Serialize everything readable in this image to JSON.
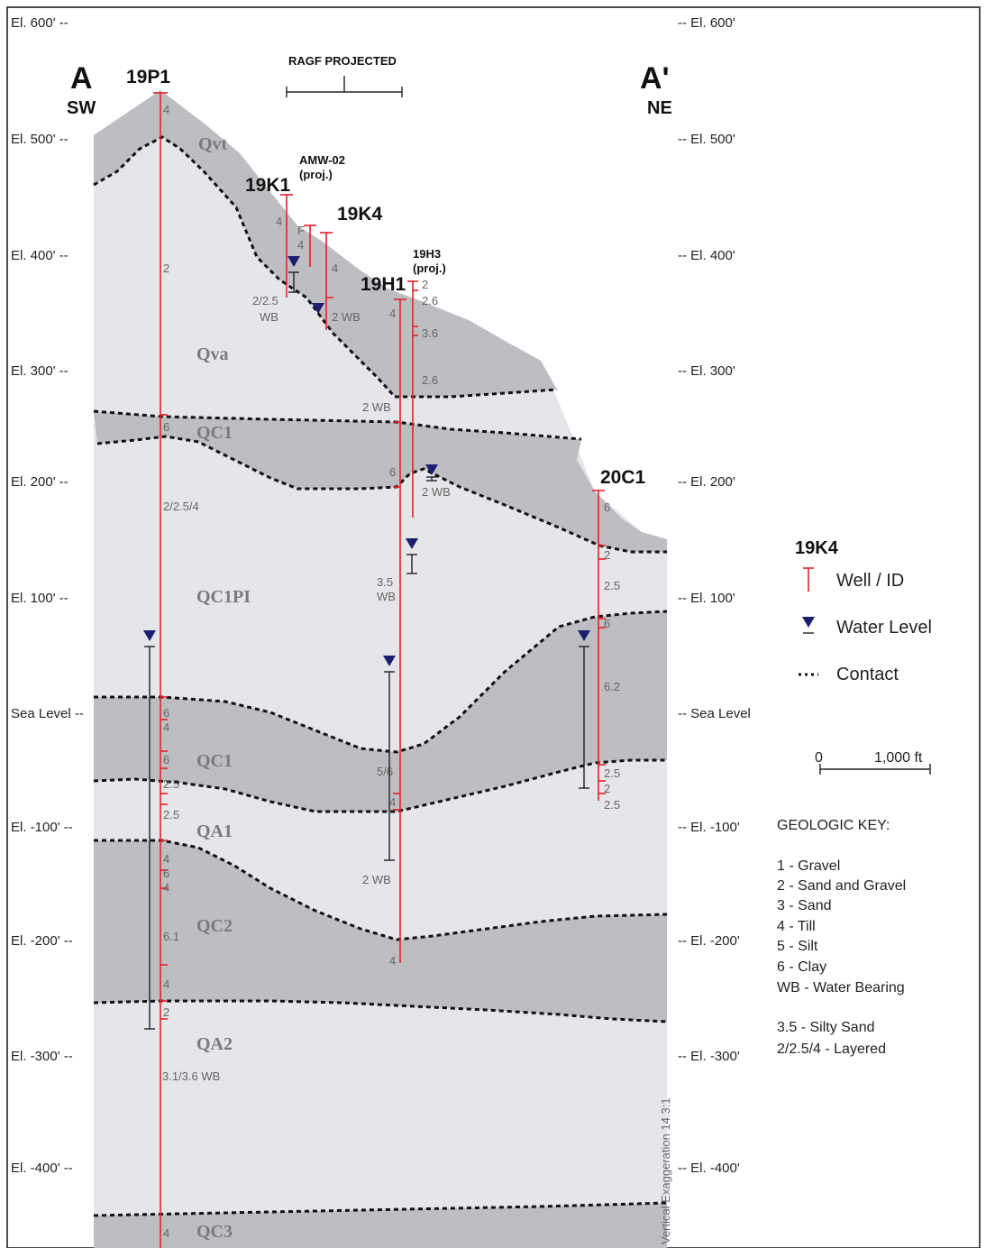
{
  "section": {
    "left_letter": "A",
    "left_dir": "SW",
    "right_letter": "A'",
    "right_dir": "NE",
    "projected_label": "RAGF PROJECTED",
    "vert_exag": "Vertical Exaggeration 14.3:1"
  },
  "elevations_left": [
    "El. 600' --",
    "El. 500' --",
    "El. 400' --",
    "El. 300' --",
    "El. 200' --",
    "El. 100' --",
    "Sea Level --",
    "El. -100' --",
    "El. -200' --",
    "El. -300' --",
    "El. -400' --"
  ],
  "elevations_right": [
    "-- El. 600'",
    "-- El. 500'",
    "-- El. 400'",
    "-- El. 300'",
    "-- El. 200'",
    "-- El. 100'",
    "-- Sea Level",
    "-- El. -100'",
    "-- El. -200'",
    "-- El. -300'",
    "-- El. -400'"
  ],
  "units": {
    "qvt": "Qvt",
    "qva": "Qva",
    "qc1_upper": "QC1",
    "qc1pi": "QC1PI",
    "qc1_lower": "QC1",
    "qa1": "QA1",
    "qc2": "QC2",
    "qa2": "QA2",
    "qc3": "QC3"
  },
  "wells": {
    "w19p1": "19P1",
    "w19k1": "19K1",
    "amw02": "AMW-02",
    "amw02_proj": "(proj.)",
    "w19k4": "19K4",
    "w19h3": "19H3",
    "w19h3_proj": "(proj.)",
    "w19h1": "19H1",
    "w20c1": "20C1"
  },
  "well_labels": {
    "p1_4a": "4",
    "p1_2": "2",
    "p1_6a": "6",
    "p1_layered": "2/2.5/4",
    "p1_6b": "6",
    "p1_4b": "4",
    "p1_6c": "6",
    "p1_25a": "2.5",
    "p1_25b": "2.5",
    "p1_4c": "4",
    "p1_6d": "6",
    "p1_4d": "4",
    "p1_61": "6.1",
    "p1_4e": "4",
    "p1_2b": "2",
    "p1_3136": "3.1/3.6 WB",
    "p1_4f": "4",
    "k1_4": "4",
    "k1_225": "2/2.5",
    "k1_wb": "WB",
    "amw_f": "F",
    "amw_4": "4",
    "k4_4": "4",
    "k4_2wb": "2 WB",
    "h3_2": "2",
    "h3_26a": "2.6",
    "h3_36": "3.6",
    "h3_26b": "2.6",
    "h1_4a": "4",
    "h1_2wb_a": "2 WB",
    "h1_6": "6",
    "h1_2wb_b": "2 WB",
    "h1_35": "3.5",
    "h1_wb": "WB",
    "h1_56": "5/6",
    "h1_4b": "4",
    "h1_2wb_c": "2 WB",
    "h1_4c": "4",
    "c1_6": "6",
    "c1_2": "2",
    "c1_25a": "2.5",
    "c1_6b": "6",
    "c1_62": "6.2",
    "c1_25b": "2.5",
    "c1_2b": "2",
    "c1_25c": "2.5"
  },
  "legend": {
    "sample_id": "19K4",
    "well_id": "Well / ID",
    "water_level": "Water Level",
    "contact": "Contact",
    "scale_zero": "0",
    "scale_dist": "1,000 ft"
  },
  "geologic_key": {
    "title": "GEOLOGIC KEY:",
    "items": [
      "1 - Gravel",
      "2 - Sand and Gravel",
      "3 - Sand",
      "4 - Till",
      "5 - Silt",
      "6 - Clay",
      "WB - Water Bearing"
    ],
    "extra": [
      "3.5 - Silty Sand",
      "2/2.5/4 - Layered"
    ]
  },
  "colors": {
    "dark_unit": "#bdbec2",
    "light_unit": "#e5e6e9",
    "well": "#e8202a",
    "water": "#1b1f6e"
  }
}
